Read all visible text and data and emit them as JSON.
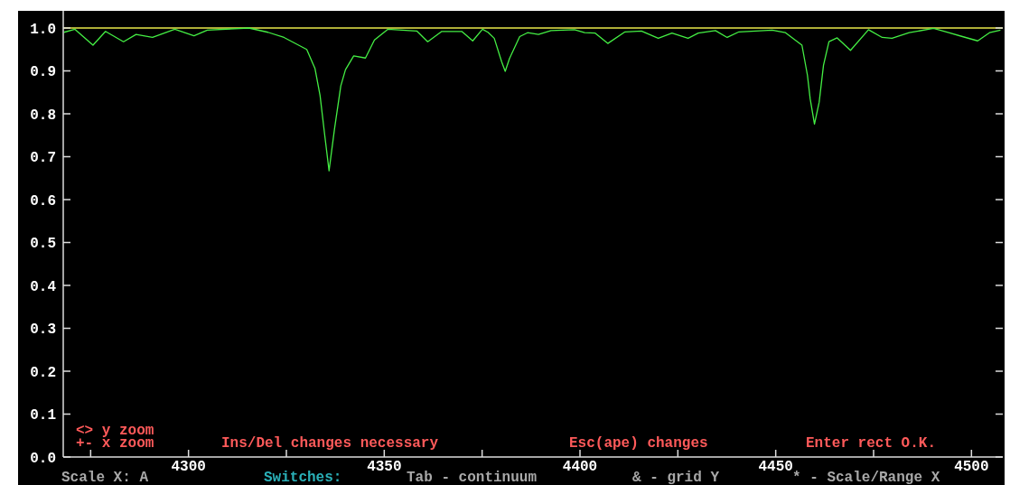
{
  "chart_data": {
    "type": "line",
    "x": [
      4268.2,
      4271.0,
      4275.6,
      4278.8,
      4283.4,
      4286.6,
      4290.8,
      4296.5,
      4301.4,
      4304.8,
      4315.4,
      4320.3,
      4324.4,
      4330.2,
      4332.3,
      4333.6,
      4334.8,
      4335.9,
      4337.3,
      4338.9,
      4340.1,
      4342.2,
      4345.2,
      4347.5,
      4350.9,
      4358.3,
      4361.1,
      4364.7,
      4369.8,
      4372.6,
      4375.1,
      4376.5,
      4378.1,
      4380.0,
      4380.9,
      4382.0,
      4384.6,
      4386.6,
      4389.4,
      4392.6,
      4398.6,
      4401.2,
      4403.9,
      4407.1,
      4411.5,
      4415.7,
      4420.0,
      4423.5,
      4427.6,
      4430.2,
      4434.6,
      4437.6,
      4440.6,
      4449.1,
      4452.5,
      4456.7,
      4458.1,
      4458.8,
      4459.9,
      4461.1,
      4462.2,
      4463.6,
      4465.7,
      4469.1,
      4473.7,
      4477.2,
      4479.7,
      4484.1,
      4490.3,
      4494.2,
      4497.7,
      4501.6,
      4504.6,
      4507.4
    ],
    "series": [
      {
        "color": "#44ee44",
        "values": [
          0.99,
          0.997,
          0.96,
          0.992,
          0.968,
          0.985,
          0.978,
          0.997,
          0.982,
          0.995,
          1.0,
          0.99,
          0.978,
          0.95,
          0.906,
          0.843,
          0.75,
          0.667,
          0.765,
          0.865,
          0.903,
          0.935,
          0.93,
          0.972,
          0.997,
          0.993,
          0.968,
          0.992,
          0.992,
          0.97,
          0.997,
          0.99,
          0.976,
          0.921,
          0.899,
          0.929,
          0.98,
          0.989,
          0.985,
          0.994,
          0.996,
          0.989,
          0.988,
          0.964,
          0.991,
          0.993,
          0.976,
          0.988,
          0.976,
          0.988,
          0.994,
          0.978,
          0.991,
          0.995,
          0.989,
          0.96,
          0.89,
          0.835,
          0.776,
          0.827,
          0.913,
          0.968,
          0.977,
          0.948,
          0.996,
          0.978,
          0.976,
          0.989,
          0.999,
          0.989,
          0.98,
          0.97,
          0.989,
          0.995
        ]
      }
    ],
    "xlim": [
      4268,
      4508
    ],
    "xticks": [
      {
        "value": 4275,
        "label": null
      },
      4300,
      {
        "value": 4325,
        "label": null
      },
      4350,
      {
        "value": 4375,
        "label": null
      },
      4400,
      {
        "value": 4425,
        "label": null
      },
      4450,
      {
        "value": 4475,
        "label": null
      },
      4500
    ],
    "ylim": [
      0,
      1.04
    ],
    "yticks": [
      {
        "value": 0,
        "label": "0.0"
      },
      0.1,
      0.2,
      0.3,
      0.4,
      0.5,
      0.6,
      0.7,
      0.8,
      0.9,
      {
        "value": 1,
        "label": "1.0"
      }
    ],
    "ref_lines": [
      {
        "axis": "y",
        "value": 1,
        "color": "#e8e84a"
      }
    ],
    "line_style": "solid",
    "grid": false,
    "annotations": [
      "<> y zoom",
      "+- x zoom",
      "Ins/Del changes necessary",
      "Esc(ape) changes",
      "Enter rect O.K.",
      "Scale X: A",
      "Switches:",
      "Tab - continuum",
      "& - grid Y",
      "* - Scale/Range X"
    ]
  }
}
